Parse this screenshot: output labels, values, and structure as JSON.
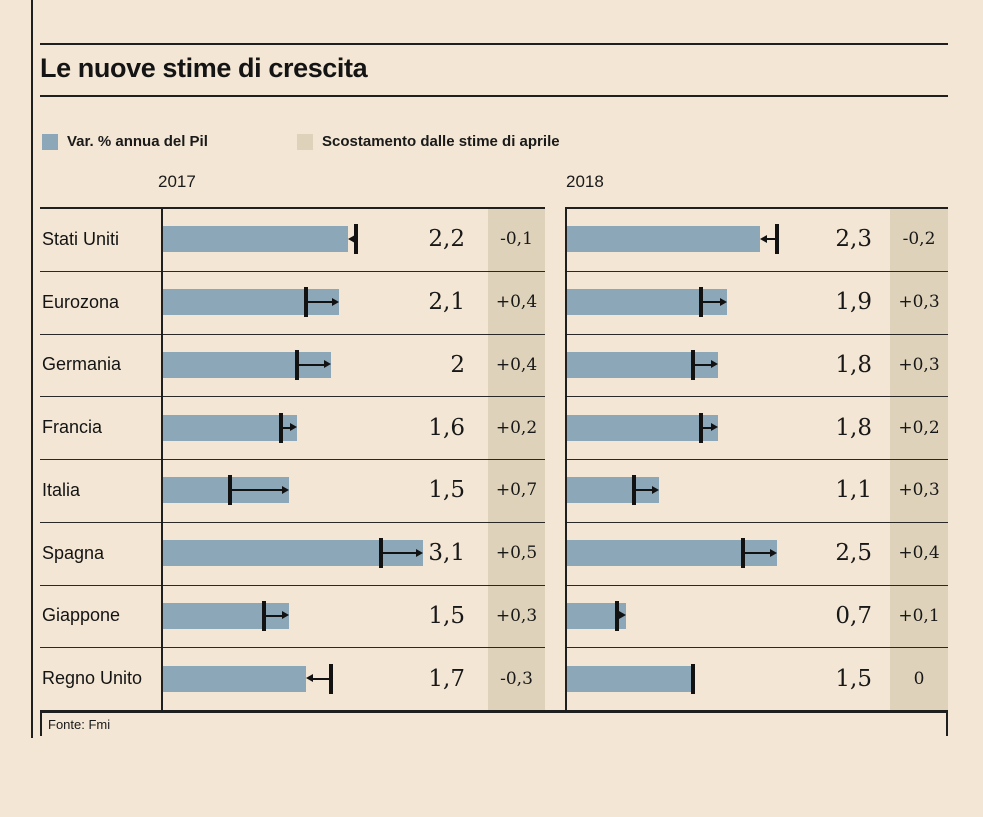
{
  "title": "Le nuove stime di crescita",
  "legend": [
    {
      "label": "Var. % annua del Pil",
      "color": "#8ca7b8"
    },
    {
      "label": "Scostamento dalle stime di aprile",
      "color": "#ded2ba"
    }
  ],
  "source": "Fonte: Fmi",
  "chart_data": {
    "type": "bar",
    "orientation": "horizontal",
    "title": "Le nuove stime di crescita",
    "value_unit": "Var. % annua del Pil",
    "deviation_unit": "Scostamento dalle stime di aprile",
    "categories": [
      "Stati Uniti",
      "Eurozona",
      "Germania",
      "Francia",
      "Italia",
      "Spagna",
      "Giappone",
      "Regno Unito"
    ],
    "panels": [
      {
        "year": "2017",
        "values": [
          2.2,
          2.1,
          2.0,
          1.6,
          1.5,
          3.1,
          1.5,
          1.7
        ],
        "value_labels": [
          "2,2",
          "2,1",
          "2",
          "1,6",
          "1,5",
          "3,1",
          "1,5",
          "1,7"
        ],
        "deviations": [
          -0.1,
          0.4,
          0.4,
          0.2,
          0.7,
          0.5,
          0.3,
          -0.3
        ],
        "deviation_labels": [
          "-0,1",
          "+0,4",
          "+0,4",
          "+0,2",
          "+0,7",
          "+0,5",
          "+0,3",
          "-0,3"
        ]
      },
      {
        "year": "2018",
        "values": [
          2.3,
          1.9,
          1.8,
          1.8,
          1.1,
          2.5,
          0.7,
          1.5
        ],
        "value_labels": [
          "2,3",
          "1,9",
          "1,8",
          "1,8",
          "1,1",
          "2,5",
          "0,7",
          "1,5"
        ],
        "deviations": [
          -0.2,
          0.3,
          0.3,
          0.2,
          0.3,
          0.4,
          0.1,
          0
        ],
        "deviation_labels": [
          "-0,2",
          "+0,3",
          "+0,3",
          "+0,2",
          "+0,3",
          "+0,4",
          "+0,1",
          "0"
        ]
      }
    ],
    "annotation_note": "bar = new estimate; black tick = April estimate; arrow points from April estimate to new estimate",
    "colors": {
      "background": "#f3e6d4",
      "bar": "#8ca7b8",
      "deviation_column": "#ded2ba",
      "line": "#1f1f1f"
    },
    "xlim": [
      0,
      4.5
    ],
    "grid": false,
    "legend_position": "top"
  }
}
